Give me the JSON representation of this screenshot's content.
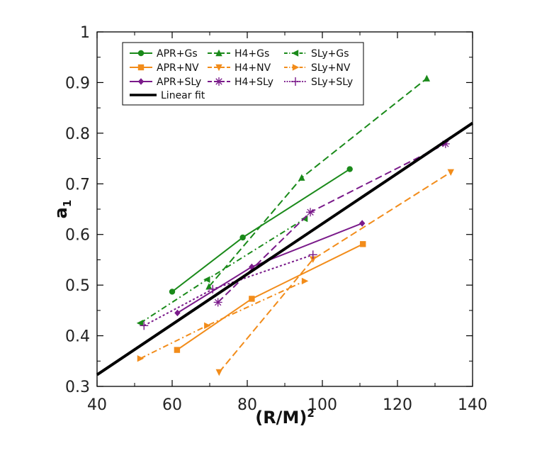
{
  "chart_data": {
    "type": "line",
    "title": "",
    "xlabel": "(R/M)",
    "xlabel_sup": "2",
    "ylabel": "a",
    "ylabel_sub": "1",
    "xlim": [
      40,
      140
    ],
    "ylim": [
      0.3,
      1.0
    ],
    "xticks": [
      40,
      60,
      80,
      100,
      120,
      140
    ],
    "yticks": [
      0.3,
      0.4,
      0.5,
      0.6,
      0.7,
      0.8,
      0.9,
      1.0
    ],
    "xtick_labels": [
      "40",
      "60",
      "80",
      "100",
      "120",
      "140"
    ],
    "ytick_labels": [
      "0.3",
      "0.4",
      "0.5",
      "0.6",
      "0.7",
      "0.8",
      "0.9",
      "1"
    ],
    "grid": false,
    "legend_position": "top-left",
    "series": [
      {
        "name": "APR+Gs",
        "color": "#1a8a1a",
        "dash": "solid",
        "marker": "circle",
        "x": [
          60,
          78.8,
          107.3
        ],
        "y": [
          0.487,
          0.594,
          0.729
        ]
      },
      {
        "name": "H4+Gs",
        "color": "#1a8a1a",
        "dash": "longdash",
        "marker": "triangle-up",
        "x": [
          69.8,
          94.5,
          127.8
        ],
        "y": [
          0.497,
          0.712,
          0.908
        ]
      },
      {
        "name": "SLy+Gs",
        "color": "#1a8a1a",
        "dash": "dashdot",
        "marker": "triangle-left",
        "x": [
          51.5,
          69.3,
          95.3
        ],
        "y": [
          0.425,
          0.511,
          0.631
        ]
      },
      {
        "name": "APR+NV",
        "color": "#f28c1a",
        "dash": "solid",
        "marker": "square",
        "x": [
          61.3,
          81.2,
          110.8
        ],
        "y": [
          0.372,
          0.473,
          0.581
        ]
      },
      {
        "name": "H4+NV",
        "color": "#f28c1a",
        "dash": "longdash",
        "marker": "triangle-down",
        "x": [
          72.5,
          97.5,
          134.2
        ],
        "y": [
          0.328,
          0.551,
          0.723
        ]
      },
      {
        "name": "SLy+NV",
        "color": "#f28c1a",
        "dash": "dashdot",
        "marker": "triangle-right",
        "x": [
          51.5,
          69.3,
          95.3
        ],
        "y": [
          0.355,
          0.42,
          0.508
        ]
      },
      {
        "name": "APR+SLy",
        "color": "#7a1a8a",
        "dash": "solid",
        "marker": "diamond",
        "x": [
          61.4,
          81.2,
          110.6
        ],
        "y": [
          0.445,
          0.536,
          0.622
        ]
      },
      {
        "name": "H4+SLy",
        "color": "#7a1a8a",
        "dash": "longdash",
        "marker": "asterisk",
        "x": [
          72.2,
          96.8,
          132.8
        ],
        "y": [
          0.466,
          0.644,
          0.779
        ]
      },
      {
        "name": "SLy+SLy",
        "color": "#7a1a8a",
        "dash": "dotted",
        "marker": "plus",
        "x": [
          52.5,
          70.8,
          97.5
        ],
        "y": [
          0.42,
          0.492,
          0.56
        ]
      },
      {
        "name": "Linear fit",
        "color": "#000000",
        "dash": "solid",
        "marker": "none",
        "width": "thick",
        "x": [
          40,
          140
        ],
        "y": [
          0.323,
          0.82
        ]
      }
    ]
  }
}
